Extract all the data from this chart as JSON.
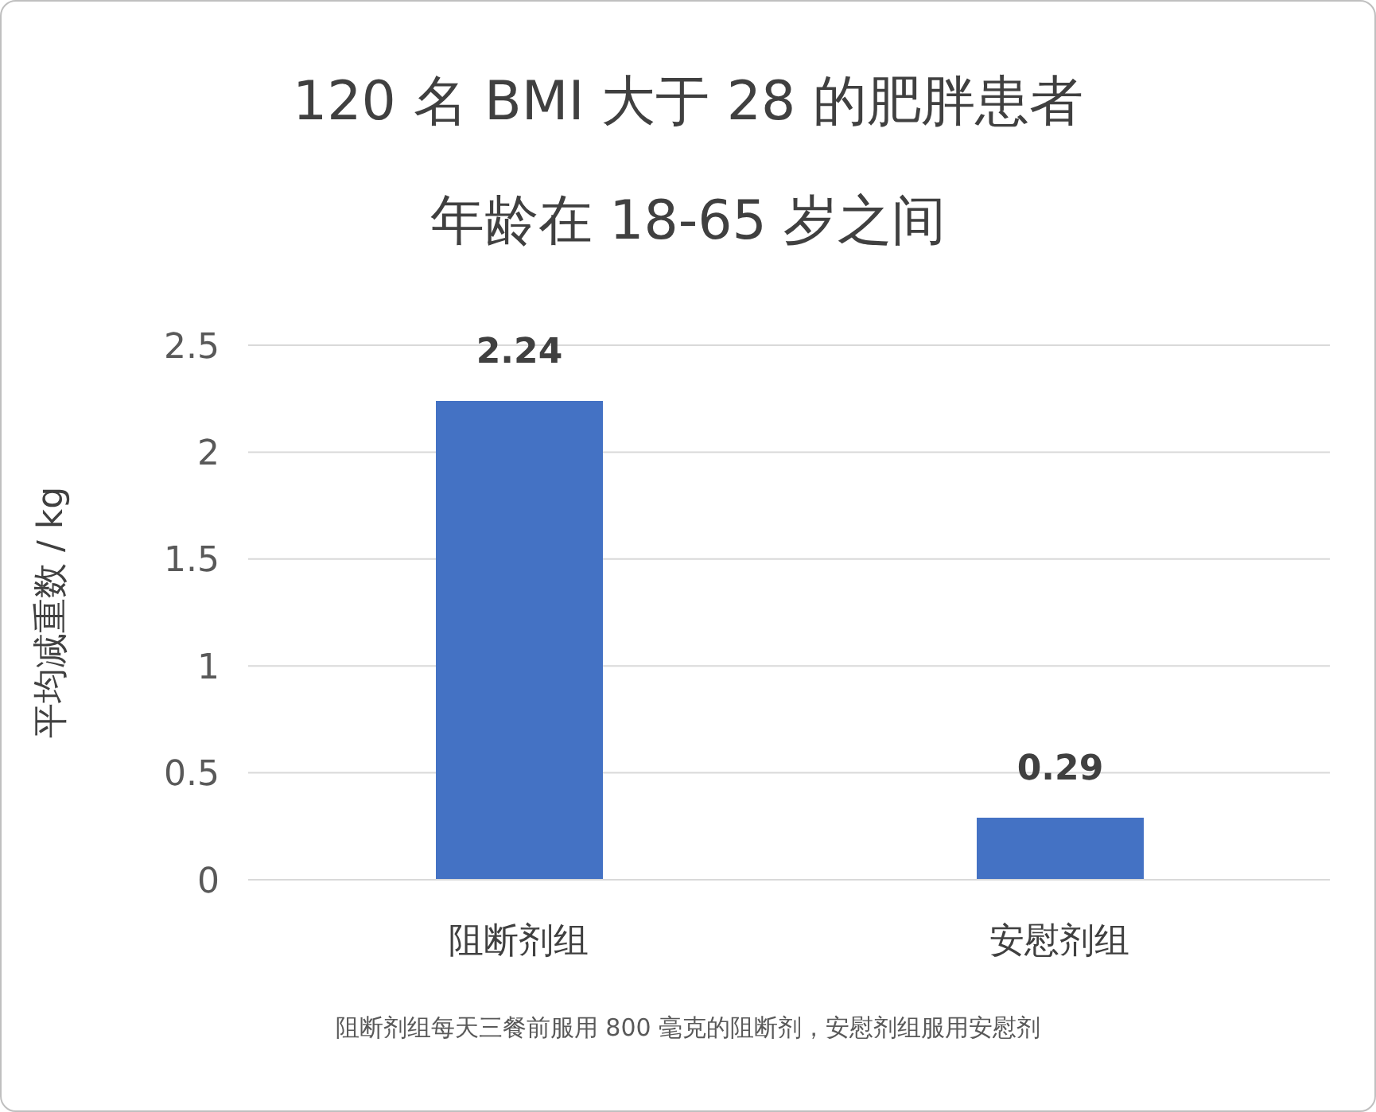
{
  "chart_data": {
    "type": "bar",
    "title": "120 名 BMI 大于 28 的肥胖患者",
    "subtitle": "年龄在 18-65 岁之间",
    "ylabel": "平均减重数 / kg",
    "categories": [
      "阻断剂组",
      "安慰剂组"
    ],
    "values": [
      2.24,
      0.29
    ],
    "color": "#4472c4",
    "ylim": [
      0,
      2.5
    ],
    "yticks": [
      0,
      0.5,
      1,
      1.5,
      2,
      2.5
    ],
    "grid": "y",
    "data_labels": true,
    "annotations": [
      "阻断剂组每天三餐前服用 800 毫克的阻断剂，安慰剂组服用安慰剂"
    ]
  }
}
